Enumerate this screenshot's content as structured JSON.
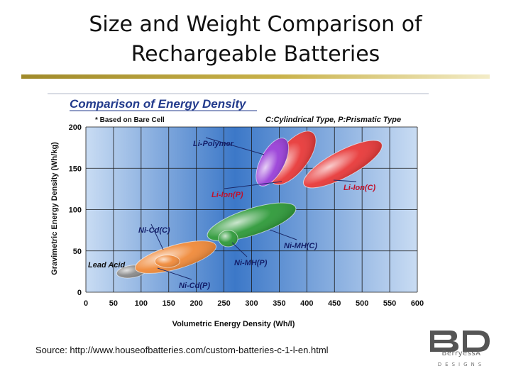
{
  "slide": {
    "title_line1": "Size and Weight Comparison of",
    "title_line2": "Rechargeable Batteries",
    "source": "Source:  http://www.houseofbatteries.com/custom-batteries-c-1-l-en.html"
  },
  "logo": {
    "mark": "BD",
    "word": "BerryessA",
    "sub": "DESIGNS"
  },
  "chart_data": {
    "type": "scatter",
    "title": "Comparison of Energy Density",
    "note": "* Based on Bare Cell",
    "legend_note": "C:Cylindrical Type, P:Prismatic Type",
    "xlabel": "Volumetric  Energy  Density (Wh/l)",
    "ylabel": "Gravimetric  Energy  Density (Wh/kg)",
    "xlim": [
      0,
      600
    ],
    "ylim": [
      0,
      200
    ],
    "x_ticks": [
      0,
      50,
      100,
      150,
      200,
      250,
      300,
      350,
      400,
      450,
      500,
      550,
      600
    ],
    "y_ticks": [
      0,
      50,
      100,
      150,
      200
    ],
    "grid": true,
    "regions": [
      {
        "name": "Lead Acid",
        "x": [
          65,
          100
        ],
        "y": [
          10,
          40
        ],
        "color": "#8a8a8a"
      },
      {
        "name": "Ni-Cd(C)",
        "x": [
          90,
          235
        ],
        "y": [
          20,
          65
        ],
        "color": "#f08a3a"
      },
      {
        "name": "Ni-Cd(P)",
        "x": [
          125,
          170
        ],
        "y": [
          30,
          45
        ],
        "color": "#f08a3a"
      },
      {
        "name": "Ni-MH(C)",
        "x": [
          220,
          380
        ],
        "y": [
          60,
          110
        ],
        "color": "#2f9a3a"
      },
      {
        "name": "Ni-MH(P)",
        "x": [
          240,
          275
        ],
        "y": [
          55,
          75
        ],
        "color": "#2f9a3a"
      },
      {
        "name": "Li-Ion(P)",
        "x": [
          330,
          420
        ],
        "y": [
          135,
          190
        ],
        "color": "#e83a3a"
      },
      {
        "name": "Li-Ion(C)",
        "x": [
          390,
          540
        ],
        "y": [
          130,
          180
        ],
        "color": "#e83a3a"
      },
      {
        "name": "Li-Polymer",
        "x": [
          300,
          375
        ],
        "y": [
          135,
          180
        ],
        "color": "#9a40d8"
      }
    ]
  }
}
